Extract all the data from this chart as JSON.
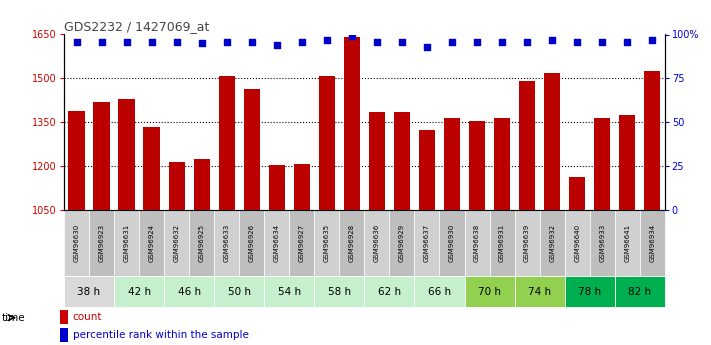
{
  "title": "GDS2232 / 1427069_at",
  "gsm_labels": [
    "GSM96630",
    "GSM96923",
    "GSM96631",
    "GSM96924",
    "GSM96632",
    "GSM96925",
    "GSM96633",
    "GSM96926",
    "GSM96634",
    "GSM96927",
    "GSM96635",
    "GSM96928",
    "GSM96636",
    "GSM96929",
    "GSM96637",
    "GSM96930",
    "GSM96638",
    "GSM96931",
    "GSM96639",
    "GSM96932",
    "GSM96640",
    "GSM96933",
    "GSM96641",
    "GSM96934"
  ],
  "counts": [
    1390,
    1420,
    1430,
    1335,
    1215,
    1225,
    1510,
    1465,
    1205,
    1210,
    1510,
    1640,
    1385,
    1385,
    1325,
    1365,
    1355,
    1365,
    1490,
    1520,
    1165,
    1365,
    1375,
    1525
  ],
  "percentile_ranks": [
    96,
    96,
    96,
    96,
    96,
    95,
    96,
    96,
    94,
    96,
    97,
    99,
    96,
    96,
    93,
    96,
    96,
    96,
    96,
    97,
    96,
    96,
    96,
    97
  ],
  "time_groups": [
    {
      "label": "38 h",
      "start": 0,
      "end": 2,
      "color": "#d9d9d9"
    },
    {
      "label": "42 h",
      "start": 2,
      "end": 4,
      "color": "#c6efce"
    },
    {
      "label": "46 h",
      "start": 4,
      "end": 6,
      "color": "#c6efce"
    },
    {
      "label": "50 h",
      "start": 6,
      "end": 8,
      "color": "#c6efce"
    },
    {
      "label": "54 h",
      "start": 8,
      "end": 10,
      "color": "#c6efce"
    },
    {
      "label": "58 h",
      "start": 10,
      "end": 12,
      "color": "#c6efce"
    },
    {
      "label": "62 h",
      "start": 12,
      "end": 14,
      "color": "#c6efce"
    },
    {
      "label": "66 h",
      "start": 14,
      "end": 16,
      "color": "#c6efce"
    },
    {
      "label": "70 h",
      "start": 16,
      "end": 18,
      "color": "#92d050"
    },
    {
      "label": "74 h",
      "start": 18,
      "end": 20,
      "color": "#92d050"
    },
    {
      "label": "78 h",
      "start": 20,
      "end": 22,
      "color": "#00b050"
    },
    {
      "label": "82 h",
      "start": 22,
      "end": 24,
      "color": "#00b050"
    }
  ],
  "ylim_left": [
    1050,
    1650
  ],
  "ylim_right": [
    0,
    100
  ],
  "yticks_left": [
    1050,
    1200,
    1350,
    1500,
    1650
  ],
  "yticks_right": [
    0,
    25,
    50,
    75,
    100
  ],
  "bar_color": "#bb0000",
  "dot_color": "#0000cc",
  "bar_width": 0.65,
  "bg_color": "#ffffff",
  "left_axis_color": "#cc0000",
  "right_axis_color": "#0000cc",
  "gsm_bg_even": "#d0d0d0",
  "gsm_bg_odd": "#bebebe",
  "legend_count_color": "#cc0000",
  "legend_pct_color": "#0000cc"
}
